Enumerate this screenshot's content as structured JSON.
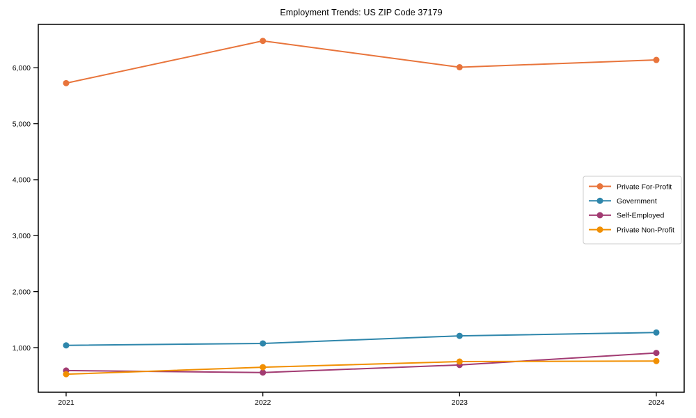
{
  "chart_data": {
    "type": "line",
    "title": "Employment Trends: US ZIP Code 37179",
    "x": [
      2021,
      2022,
      2023,
      2024
    ],
    "xtick_labels": [
      "2021",
      "2022",
      "2023",
      "2024"
    ],
    "yticks": [
      1000,
      2000,
      3000,
      4000,
      5000,
      6000
    ],
    "ytick_labels": [
      "1,000",
      "2,000",
      "3,000",
      "4,000",
      "5,000",
      "6,000"
    ],
    "ylim": [
      203,
      6775
    ],
    "grid": false,
    "legend_position": "center right",
    "series": [
      {
        "name": "Private For-Profit",
        "color": "#E8743B",
        "values": [
          5725,
          6480,
          6010,
          6140
        ]
      },
      {
        "name": "Government",
        "color": "#2E86AB",
        "values": [
          1040,
          1075,
          1210,
          1270
        ]
      },
      {
        "name": "Self-Employed",
        "color": "#A23B72",
        "values": [
          590,
          555,
          690,
          905
        ]
      },
      {
        "name": "Private Non-Profit",
        "color": "#F18F01",
        "values": [
          525,
          650,
          750,
          760
        ]
      }
    ]
  }
}
